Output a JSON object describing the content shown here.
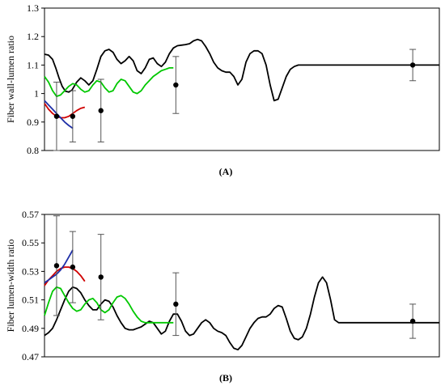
{
  "chart_data": [
    {
      "type": "line",
      "panel_label": "(A)",
      "ylabel": "Fiber wall-lumen ratio",
      "ylim": [
        0.8,
        1.3
      ],
      "yticks": [
        "0.8",
        "0.9",
        "1",
        "1.1",
        "1.2",
        "1.3"
      ],
      "grid": false,
      "series": [
        {
          "color": "#000000",
          "kind": "line",
          "x": [
            0,
            5,
            10,
            14,
            18,
            22,
            26,
            30,
            34,
            40,
            45,
            50,
            55,
            60,
            65,
            70,
            75,
            80,
            85,
            90,
            95,
            100,
            105,
            110,
            115,
            120,
            125,
            130,
            135,
            140,
            145,
            150,
            155,
            160,
            165,
            170,
            175,
            180,
            185,
            190,
            195,
            200,
            205,
            210,
            215,
            220,
            225,
            230,
            235,
            240,
            245,
            250,
            255,
            260,
            265,
            270,
            275,
            280,
            285,
            290,
            295,
            300,
            305,
            310,
            315,
            320,
            325,
            330,
            335,
            340,
            345,
            350,
            355,
            360,
            365,
            370,
            375,
            380,
            385,
            390,
            395,
            400,
            405,
            410,
            415,
            420,
            425,
            430,
            435,
            440,
            445,
            450,
            455,
            460,
            465,
            470,
            475,
            480,
            485,
            490
          ],
          "y": [
            1.138,
            1.135,
            1.12,
            1.09,
            1.055,
            1.025,
            1.008,
            1.005,
            1.012,
            1.04,
            1.055,
            1.045,
            1.03,
            1.045,
            1.085,
            1.13,
            1.15,
            1.155,
            1.145,
            1.12,
            1.105,
            1.115,
            1.13,
            1.115,
            1.08,
            1.07,
            1.09,
            1.12,
            1.125,
            1.105,
            1.095,
            1.11,
            1.14,
            1.16,
            1.168,
            1.17,
            1.172,
            1.175,
            1.185,
            1.19,
            1.185,
            1.165,
            1.14,
            1.11,
            1.09,
            1.08,
            1.075,
            1.075,
            1.06,
            1.03,
            1.05,
            1.11,
            1.14,
            1.15,
            1.15,
            1.14,
            1.1,
            1.03,
            0.975,
            0.98,
            1.02,
            1.06,
            1.085,
            1.095,
            1.1,
            1.1,
            1.1,
            1.1,
            1.1,
            1.1,
            1.1,
            1.1,
            1.1,
            1.1,
            1.1,
            1.1,
            1.1,
            1.1,
            1.1,
            1.1,
            1.1,
            1.1,
            1.1,
            1.1,
            1.1,
            1.1,
            1.1,
            1.1,
            1.1,
            1.1,
            1.1,
            1.1,
            1.1,
            1.1,
            1.1,
            1.1,
            1.1,
            1.1,
            1.1,
            1.1
          ]
        },
        {
          "color": "#00c800",
          "kind": "line",
          "x": [
            0,
            5,
            10,
            15,
            20,
            25,
            30,
            35,
            40,
            45,
            50,
            55,
            60,
            65,
            70,
            75,
            80,
            85,
            90,
            95,
            100,
            105,
            110,
            115,
            120,
            125,
            130,
            135,
            140,
            145,
            150,
            155,
            160
          ],
          "y": [
            1.06,
            1.04,
            1.01,
            0.99,
            0.995,
            1.01,
            1.025,
            1.035,
            1.03,
            1.015,
            1.005,
            1.01,
            1.03,
            1.045,
            1.04,
            1.02,
            1.005,
            1.01,
            1.035,
            1.05,
            1.045,
            1.025,
            1.005,
            1.0,
            1.01,
            1.03,
            1.045,
            1.06,
            1.07,
            1.08,
            1.085,
            1.09,
            1.09
          ]
        },
        {
          "color": "#d00000",
          "kind": "line",
          "x": [
            0,
            5,
            10,
            15,
            20,
            25,
            30,
            35,
            40,
            45,
            50
          ],
          "y": [
            0.965,
            0.945,
            0.93,
            0.92,
            0.915,
            0.915,
            0.92,
            0.93,
            0.94,
            0.948,
            0.952
          ]
        },
        {
          "color": "#1f2fa8",
          "kind": "line",
          "x": [
            0,
            5,
            10,
            15,
            20,
            25,
            30,
            35
          ],
          "y": [
            0.975,
            0.96,
            0.945,
            0.93,
            0.915,
            0.9,
            0.888,
            0.878
          ]
        },
        {
          "color": "#000000",
          "kind": "points",
          "x": [
            15,
            35,
            70,
            163,
            457
          ],
          "y": [
            0.92,
            0.92,
            0.94,
            1.03,
            1.1
          ],
          "err": [
            0.12,
            0.09,
            0.11,
            0.1,
            0.055
          ]
        }
      ]
    },
    {
      "type": "line",
      "panel_label": "(B)",
      "ylabel": "Fiber lumen-width ratio",
      "ylim": [
        0.47,
        0.57
      ],
      "yticks": [
        "0.47",
        "0.49",
        "0.51",
        "0.53",
        "0.55",
        "0.57"
      ],
      "grid": false,
      "series": [
        {
          "color": "#000000",
          "kind": "line",
          "x": [
            0,
            5,
            10,
            15,
            20,
            25,
            30,
            35,
            40,
            45,
            50,
            55,
            60,
            65,
            70,
            75,
            80,
            85,
            90,
            95,
            100,
            105,
            110,
            115,
            120,
            125,
            130,
            135,
            140,
            145,
            150,
            155,
            160,
            165,
            170,
            175,
            180,
            185,
            190,
            195,
            200,
            205,
            210,
            215,
            220,
            225,
            230,
            235,
            240,
            245,
            250,
            255,
            260,
            265,
            270,
            275,
            280,
            285,
            290,
            295,
            300,
            305,
            310,
            315,
            320,
            325,
            330,
            335,
            340,
            345,
            350,
            355,
            360,
            365,
            370,
            375,
            380,
            385,
            390,
            395,
            400,
            405,
            410,
            415,
            420,
            425,
            430,
            435,
            440,
            445,
            450,
            455,
            460,
            465,
            470,
            475,
            480,
            485,
            490
          ],
          "y": [
            0.485,
            0.487,
            0.49,
            0.496,
            0.503,
            0.51,
            0.516,
            0.519,
            0.518,
            0.515,
            0.51,
            0.506,
            0.503,
            0.503,
            0.507,
            0.51,
            0.509,
            0.505,
            0.499,
            0.494,
            0.49,
            0.489,
            0.489,
            0.49,
            0.491,
            0.493,
            0.495,
            0.494,
            0.49,
            0.486,
            0.488,
            0.495,
            0.5,
            0.5,
            0.495,
            0.488,
            0.485,
            0.486,
            0.49,
            0.494,
            0.496,
            0.494,
            0.49,
            0.488,
            0.487,
            0.485,
            0.48,
            0.476,
            0.475,
            0.478,
            0.484,
            0.49,
            0.494,
            0.497,
            0.498,
            0.498,
            0.5,
            0.504,
            0.506,
            0.505,
            0.497,
            0.488,
            0.483,
            0.482,
            0.484,
            0.49,
            0.5,
            0.512,
            0.522,
            0.526,
            0.522,
            0.51,
            0.496,
            0.494,
            0.494,
            0.494,
            0.494,
            0.494,
            0.494,
            0.494,
            0.494,
            0.494,
            0.494,
            0.494,
            0.494,
            0.494,
            0.494,
            0.494,
            0.494,
            0.494,
            0.494,
            0.494,
            0.494,
            0.494,
            0.494,
            0.494,
            0.494,
            0.494,
            0.494
          ]
        },
        {
          "color": "#00c800",
          "kind": "line",
          "x": [
            0,
            5,
            10,
            15,
            20,
            25,
            30,
            35,
            40,
            45,
            50,
            55,
            60,
            65,
            70,
            75,
            80,
            85,
            90,
            95,
            100,
            105,
            110,
            115,
            120,
            125,
            130,
            135,
            140,
            145,
            150,
            155,
            160
          ],
          "y": [
            0.499,
            0.508,
            0.516,
            0.519,
            0.518,
            0.513,
            0.508,
            0.504,
            0.502,
            0.503,
            0.507,
            0.51,
            0.511,
            0.508,
            0.503,
            0.501,
            0.503,
            0.508,
            0.512,
            0.513,
            0.511,
            0.507,
            0.502,
            0.498,
            0.495,
            0.494,
            0.494,
            0.494,
            0.494,
            0.494,
            0.494,
            0.494,
            0.494
          ]
        },
        {
          "color": "#d00000",
          "kind": "line",
          "x": [
            0,
            5,
            10,
            15,
            20,
            25,
            30,
            35,
            40,
            45,
            50
          ],
          "y": [
            0.52,
            0.524,
            0.527,
            0.53,
            0.532,
            0.533,
            0.533,
            0.532,
            0.53,
            0.527,
            0.523
          ]
        },
        {
          "color": "#1f2fa8",
          "kind": "line",
          "x": [
            0,
            5,
            10,
            15,
            20,
            25,
            30,
            35
          ],
          "y": [
            0.522,
            0.524,
            0.526,
            0.528,
            0.531,
            0.535,
            0.54,
            0.545
          ]
        },
        {
          "color": "#000000",
          "kind": "points",
          "x": [
            15,
            35,
            70,
            163,
            457
          ],
          "y": [
            0.534,
            0.533,
            0.526,
            0.507,
            0.495
          ],
          "err": [
            0.035,
            0.025,
            0.03,
            0.022,
            0.012
          ]
        }
      ]
    }
  ]
}
